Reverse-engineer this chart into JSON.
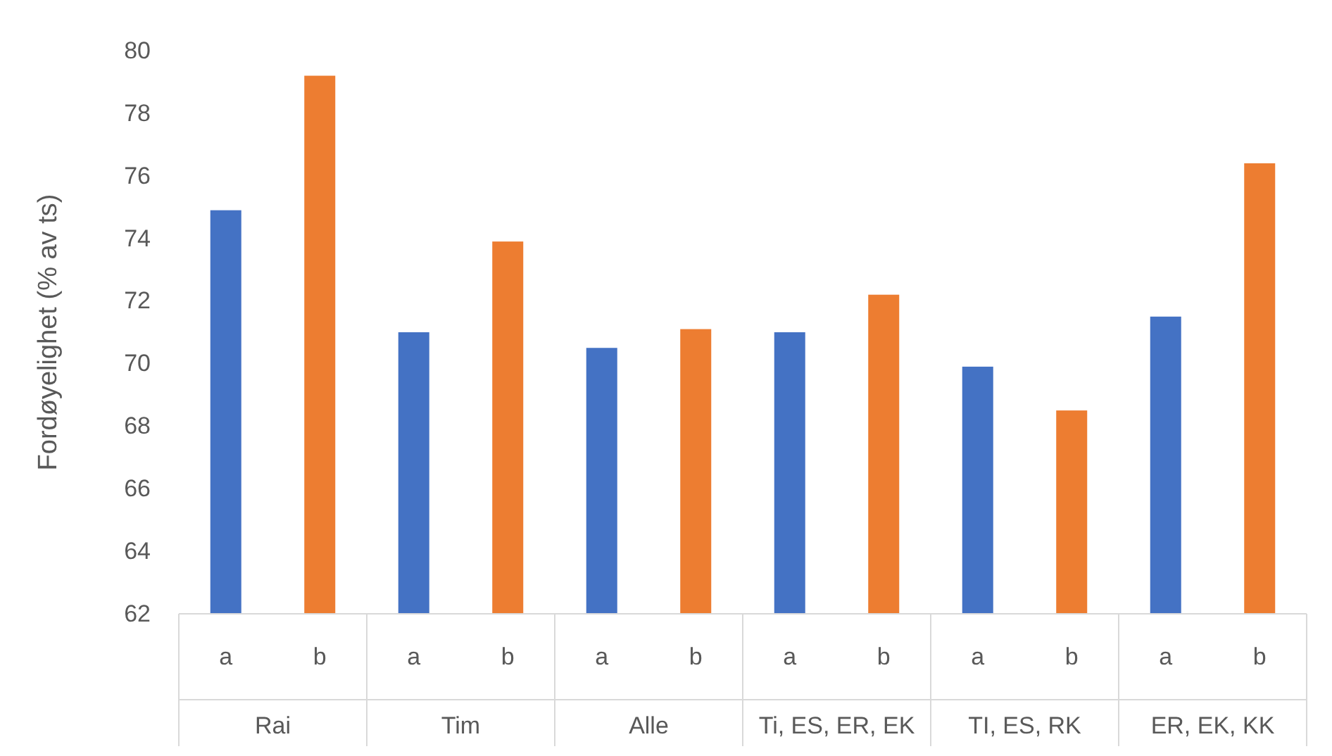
{
  "chart_data": {
    "type": "bar",
    "ylabel": "Fordøyelighet (% av ts)",
    "categories": [
      "Rai",
      "Tim",
      "Alle",
      "Ti, ES, ER, EK",
      "TI, ES, RK",
      "ER, EK, KK"
    ],
    "series": [
      {
        "name": "a",
        "color": "#4472c4",
        "values": [
          74.9,
          71.0,
          70.5,
          71.0,
          69.9,
          71.5
        ]
      },
      {
        "name": "b",
        "color": "#ed7d31",
        "values": [
          79.2,
          73.9,
          71.1,
          72.2,
          68.5,
          76.4
        ]
      }
    ],
    "ylim": [
      62,
      80
    ],
    "yticks": [
      62,
      64,
      66,
      68,
      70,
      72,
      74,
      76,
      78,
      80
    ]
  }
}
